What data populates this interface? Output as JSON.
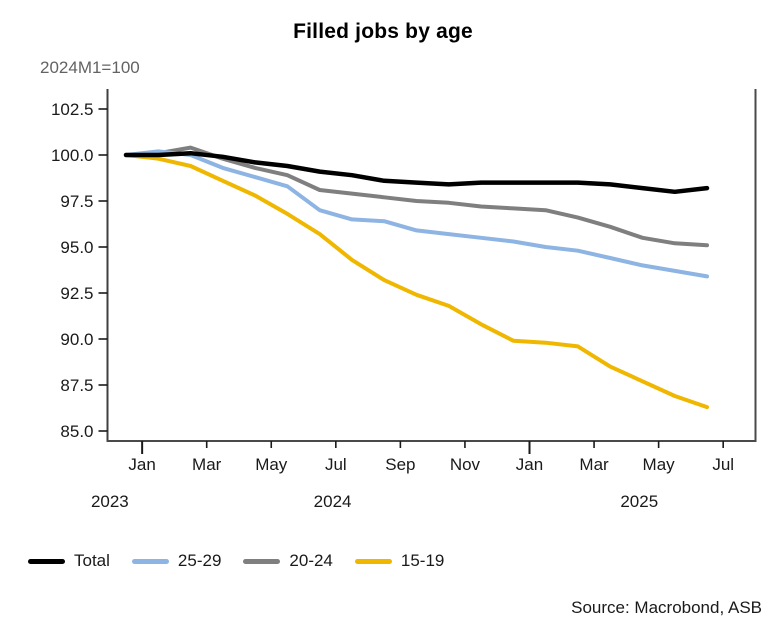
{
  "header": {
    "title": "Filled jobs by age",
    "subtitle": "2024M1=100"
  },
  "source": "Source: Macrobond, ASB",
  "legend": {
    "items": [
      {
        "label": "Total",
        "color": "#000000"
      },
      {
        "label": "25-29",
        "color": "#8DB4E2"
      },
      {
        "label": "20-24",
        "color": "#7F7F7F"
      },
      {
        "label": "15-19",
        "color": "#EFB700"
      }
    ]
  },
  "chart_data": {
    "type": "line",
    "title": "Filled jobs by age",
    "subtitle": "2024M1=100",
    "xlabel": "",
    "ylabel": "2024M1=100",
    "grid": false,
    "legend_position": "bottom-left",
    "ylim": [
      84.4,
      103.6
    ],
    "x_months": [
      "Jan 2024",
      "Feb 2024",
      "Mar 2024",
      "Apr 2024",
      "May 2024",
      "Jun 2024",
      "Jul 2024",
      "Aug 2024",
      "Sep 2024",
      "Oct 2024",
      "Nov 2024",
      "Dec 2024",
      "Jan 2025",
      "Feb 2025",
      "Mar 2025",
      "Apr 2025",
      "May 2025",
      "Jun 2025",
      "Jul 2025"
    ],
    "series": [
      {
        "name": "Total",
        "color": "#000000",
        "values": [
          100.0,
          100.0,
          100.1,
          99.9,
          99.6,
          99.4,
          99.1,
          98.9,
          98.6,
          98.5,
          98.4,
          98.5,
          98.5,
          98.5,
          98.5,
          98.4,
          98.2,
          98.0,
          98.2
        ]
      },
      {
        "name": "25-29",
        "color": "#8DB4E2",
        "values": [
          100.0,
          100.2,
          100.0,
          99.3,
          98.8,
          98.3,
          97.0,
          96.5,
          96.4,
          95.9,
          95.7,
          95.5,
          95.3,
          95.0,
          94.8,
          94.4,
          94.0,
          93.7,
          93.4
        ]
      },
      {
        "name": "20-24",
        "color": "#7F7F7F",
        "values": [
          100.0,
          100.1,
          100.4,
          99.8,
          99.3,
          98.9,
          98.1,
          97.9,
          97.7,
          97.5,
          97.4,
          97.2,
          97.1,
          97.0,
          96.6,
          96.1,
          95.5,
          95.2,
          95.1
        ]
      },
      {
        "name": "15-19",
        "color": "#EFB700",
        "values": [
          100.0,
          99.8,
          99.4,
          98.6,
          97.8,
          96.8,
          95.7,
          94.3,
          93.2,
          92.4,
          91.8,
          90.8,
          89.9,
          89.8,
          89.6,
          88.5,
          87.7,
          86.9,
          86.3
        ]
      }
    ],
    "y_ticks": [
      {
        "value": 102.5,
        "label": "102.5"
      },
      {
        "value": 100.0,
        "label": "100.0"
      },
      {
        "value": 97.5,
        "label": "97.5"
      },
      {
        "value": 95.0,
        "label": "95.0"
      },
      {
        "value": 92.5,
        "label": "92.5"
      },
      {
        "value": 90.0,
        "label": "90.0"
      },
      {
        "value": 87.5,
        "label": "87.5"
      },
      {
        "value": 85.0,
        "label": "85.0"
      }
    ],
    "x_ticks": [
      {
        "label": "Jan",
        "month_index": 0,
        "major": true
      },
      {
        "label": "Mar",
        "month_index": 2,
        "major": false
      },
      {
        "label": "May",
        "month_index": 4,
        "major": false
      },
      {
        "label": "Jul",
        "month_index": 6,
        "major": false
      },
      {
        "label": "Sep",
        "month_index": 8,
        "major": false
      },
      {
        "label": "Nov",
        "month_index": 10,
        "major": false
      },
      {
        "label": "Jan",
        "month_index": 12,
        "major": true
      },
      {
        "label": "Mar",
        "month_index": 14,
        "major": false
      },
      {
        "label": "May",
        "month_index": 16,
        "major": false
      },
      {
        "label": "Jul",
        "month_index": 18,
        "major": false
      }
    ],
    "year_labels": [
      {
        "text": "2023",
        "month_index": -0.5
      },
      {
        "text": "2024",
        "month_index": 6.4
      },
      {
        "text": "2025",
        "month_index": 15.9
      }
    ]
  }
}
